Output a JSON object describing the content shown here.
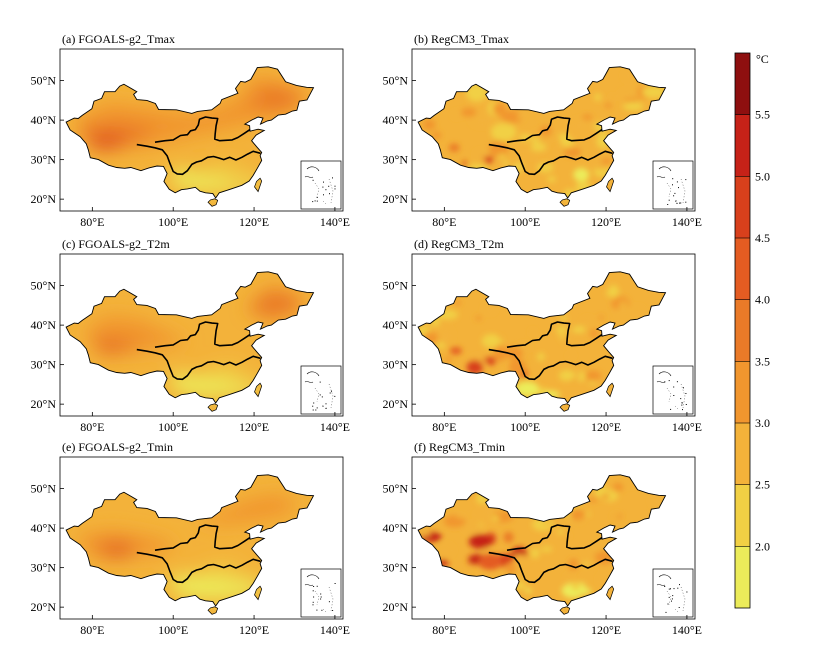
{
  "figure": {
    "panels": [
      {
        "id": "a",
        "title": "(a)  FGOALS-g2_Tmax",
        "model": "FGOALS-g2",
        "variable": "Tmax",
        "style": "smooth"
      },
      {
        "id": "b",
        "title": "(b)  RegCM3_Tmax",
        "model": "RegCM3",
        "variable": "Tmax",
        "style": "patchy"
      },
      {
        "id": "c",
        "title": "(c)  FGOALS-g2_T2m",
        "model": "FGOALS-g2",
        "variable": "T2m",
        "style": "smooth"
      },
      {
        "id": "d",
        "title": "(d)  RegCM3_T2m",
        "model": "RegCM3",
        "variable": "T2m",
        "style": "patchy"
      },
      {
        "id": "e",
        "title": "(e)  FGOALS-g2_Tmin",
        "model": "FGOALS-g2",
        "variable": "Tmin",
        "style": "smooth"
      },
      {
        "id": "f",
        "title": "(f)  RegCM3_Tmin",
        "model": "RegCM3",
        "variable": "Tmin",
        "style": "patchy"
      }
    ],
    "x_ticks": [
      "80°E",
      "100°E",
      "120°E",
      "140°E"
    ],
    "y_ticks": [
      "20°N",
      "30°N",
      "40°N",
      "50°N"
    ],
    "x_tick_values": [
      80,
      100,
      120,
      140
    ],
    "y_tick_values": [
      20,
      30,
      40,
      50
    ],
    "lon_range": [
      72,
      142
    ],
    "lat_range": [
      17,
      58
    ]
  },
  "colorbar": {
    "unit": "°C",
    "tick_labels": [
      "2.0",
      "2.5",
      "3.0",
      "3.5",
      "4.0",
      "4.5",
      "5.0",
      "5.5"
    ],
    "levels": [
      1.5,
      2.0,
      2.5,
      3.0,
      3.5,
      4.0,
      4.5,
      5.0,
      5.5,
      6.0
    ],
    "colors": [
      "#ecec5a",
      "#f1d044",
      "#f3b23a",
      "#f1962e",
      "#ea7a28",
      "#e45c22",
      "#d8401c",
      "#c62218",
      "#8e0f0f"
    ]
  }
}
